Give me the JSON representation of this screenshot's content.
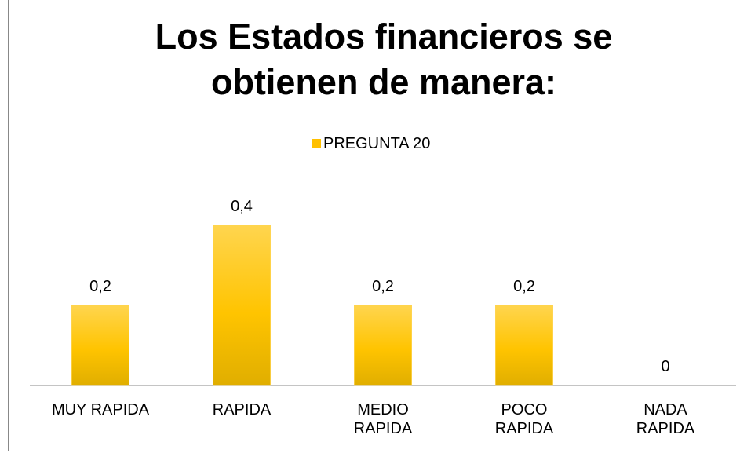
{
  "chart_data": {
    "type": "bar",
    "title": "Los Estados financieros se obtienen de manera:",
    "categories": [
      "MUY RAPIDA",
      "RAPIDA",
      "MEDIO\nRAPIDA",
      "POCO\nRAPIDA",
      "NADA\nRAPIDA"
    ],
    "series": [
      {
        "name": "PREGUNTA 20",
        "color": "#ffc000",
        "values": [
          0.2,
          0.4,
          0.2,
          0.2,
          0
        ],
        "value_labels": [
          "0,2",
          "0,4",
          "0,2",
          "0,2",
          "0"
        ]
      }
    ],
    "ylim": [
      0,
      0.45
    ],
    "legend": "top"
  }
}
